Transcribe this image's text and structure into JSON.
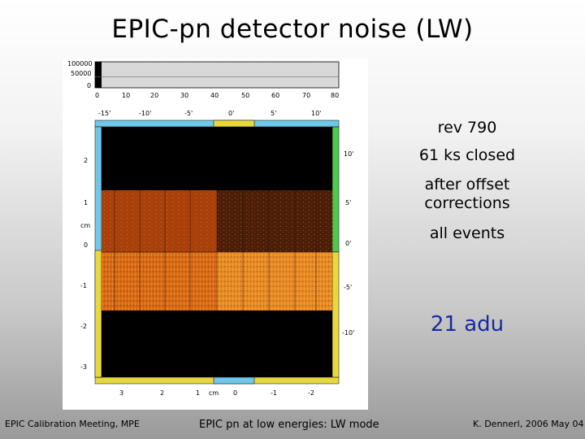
{
  "slide": {
    "title": "EPIC-pn detector noise  (LW)",
    "notes": {
      "rev": "rev 790",
      "exposure": "61 ks closed",
      "correction": "after offset corrections",
      "events": "all events",
      "threshold": "21 adu"
    },
    "footer": {
      "left": "EPIC Calibration Meeting, MPE",
      "center": "EPIC pn at low energies: LW mode",
      "right": "K. Dennerl, 2006 May 04"
    }
  },
  "figure": {
    "histogram": {
      "y_ticks": [
        "100000",
        "50000",
        "0"
      ],
      "x_ticks": [
        "0",
        "10",
        "20",
        "30",
        "40",
        "50",
        "60",
        "70",
        "80"
      ]
    },
    "top_axis_ticks": [
      "-15'",
      "-10'",
      "-5'",
      "0'",
      "5'",
      "10'"
    ],
    "bottom_axis_ticks": [
      "3",
      "2",
      "1",
      "cm",
      "0",
      "-1",
      "-2"
    ],
    "left_axis_ticks": [
      "2",
      "1",
      "cm",
      "0",
      "-1",
      "-2",
      "-3"
    ],
    "right_axis_ticks": [
      "10'",
      "5'",
      "0'",
      "-5'",
      "-10'"
    ],
    "colors": {
      "frame_cyan": "#6fc8e8",
      "frame_yellow": "#e8d840",
      "frame_green": "#50c850",
      "noise_dark": "#4a1e08",
      "noise_orange": "#e07818"
    }
  }
}
